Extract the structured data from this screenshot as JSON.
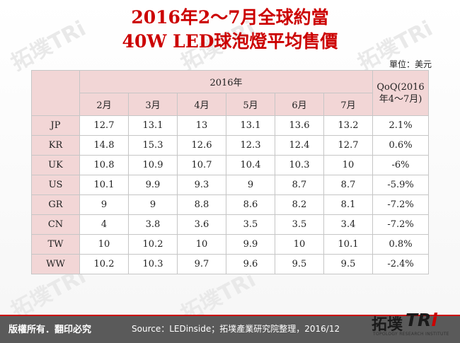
{
  "title": {
    "line1": "2016年2～7月全球約當",
    "line2": "40W LED球泡燈平均售價"
  },
  "unit_label": "單位：美元",
  "table": {
    "year_header": "2016年",
    "qoq_header": "QoQ(2016年4～7月)",
    "months": [
      "2月",
      "3月",
      "4月",
      "5月",
      "6月",
      "7月"
    ],
    "rows": [
      {
        "region": "JP",
        "values": [
          "12.7",
          "13.1",
          "13",
          "13.1",
          "13.6",
          "13.2"
        ],
        "qoq": "2.1%"
      },
      {
        "region": "KR",
        "values": [
          "14.8",
          "15.3",
          "12.6",
          "12.3",
          "12.4",
          "12.7"
        ],
        "qoq": "0.6%"
      },
      {
        "region": "UK",
        "values": [
          "10.8",
          "10.9",
          "10.7",
          "10.4",
          "10.3",
          "10"
        ],
        "qoq": "-6%"
      },
      {
        "region": "US",
        "values": [
          "10.1",
          "9.9",
          "9.3",
          "9",
          "8.7",
          "8.7"
        ],
        "qoq": "-5.9%"
      },
      {
        "region": "GR",
        "values": [
          "9",
          "9",
          "8.8",
          "8.6",
          "8.2",
          "8.1"
        ],
        "qoq": "-7.2%"
      },
      {
        "region": "CN",
        "values": [
          "4",
          "3.8",
          "3.6",
          "3.5",
          "3.5",
          "3.4"
        ],
        "qoq": "-7.2%"
      },
      {
        "region": "TW",
        "values": [
          "10",
          "10.2",
          "10",
          "9.9",
          "10",
          "10.1"
        ],
        "qoq": "0.8%"
      },
      {
        "region": "WW",
        "values": [
          "10.2",
          "10.3",
          "9.7",
          "9.6",
          "9.5",
          "9.5"
        ],
        "qoq": "-2.4%"
      }
    ]
  },
  "footer": {
    "copyright": "版權所有．翻印必究",
    "source": "Source：LEDinside；拓墣產業研究院整理，2016/12"
  },
  "logo": {
    "name_cn": "拓墣",
    "name_en": "TRi",
    "tagline": "TOPOLOGY RESEARCH INSTITUTE"
  },
  "colors": {
    "title_red": "#cc0000",
    "header_pink": "#f2d6d6",
    "footer_gray": "#5a5a5a"
  }
}
